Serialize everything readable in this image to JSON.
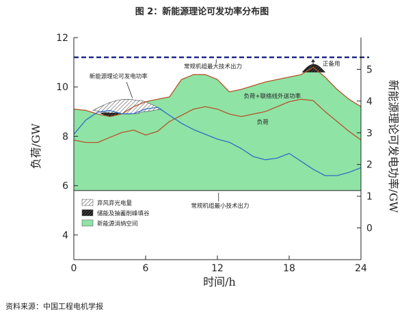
{
  "figure": {
    "title": "图 2：新能源理论可发功率分布图",
    "source": "资料来源：中国工程电机学报"
  },
  "chart_data": {
    "type": "area",
    "xlabel": "时间/h",
    "ylabel_left": "负荷/GW",
    "ylabel_right": "新能源理论可发电功率/GW",
    "xlim": [
      0,
      24
    ],
    "ylim_left": [
      3,
      12
    ],
    "ylim_right": [
      -1,
      6
    ],
    "x_ticks": [
      0,
      6,
      12,
      18,
      24
    ],
    "y_ticks_left": [
      4,
      6,
      8,
      10,
      12
    ],
    "y_ticks_right": [
      0,
      1,
      2,
      3,
      4,
      5
    ],
    "thermal_max": 11.2,
    "thermal_min": 5.8,
    "x": [
      0,
      1,
      2,
      3,
      4,
      5,
      6,
      7,
      8,
      9,
      10,
      11,
      12,
      13,
      14,
      15,
      16,
      17,
      18,
      19,
      20,
      21,
      22,
      23,
      24
    ],
    "series": [
      {
        "name": "负荷",
        "axis": "left",
        "color": "#b5522a",
        "values": [
          7.85,
          7.75,
          7.75,
          7.95,
          8.15,
          8.25,
          8.05,
          8.2,
          8.6,
          8.85,
          9.1,
          9.2,
          9.1,
          8.9,
          8.8,
          8.9,
          9.0,
          9.2,
          9.4,
          9.5,
          9.45,
          9.0,
          8.6,
          8.2,
          7.85
        ]
      },
      {
        "name": "负荷+联络线外送功率",
        "axis": "left",
        "color": "#b5522a",
        "values": [
          9.1,
          9.05,
          8.9,
          8.8,
          8.9,
          9.2,
          9.4,
          9.5,
          9.6,
          10.3,
          10.5,
          10.5,
          10.3,
          9.8,
          9.9,
          10.05,
          10.2,
          10.3,
          10.4,
          10.5,
          10.8,
          10.4,
          9.9,
          9.5,
          9.2
        ]
      },
      {
        "name": "新能源理论可发电功率",
        "axis": "right",
        "color": "#2f6ec2",
        "values": [
          2.95,
          3.4,
          3.65,
          3.7,
          3.6,
          3.6,
          3.75,
          3.8,
          3.55,
          3.3,
          3.1,
          2.95,
          2.8,
          2.7,
          2.5,
          2.25,
          2.15,
          2.2,
          2.35,
          2.1,
          1.85,
          1.65,
          1.65,
          1.75,
          1.9
        ]
      }
    ],
    "annotations": {
      "max_output": "常规机组最大技术出力",
      "min_output": "常规机组最小技术出力",
      "reserve": "正备用",
      "renewable": "新能源理论可发电功率",
      "load_tie": "负荷+联络线外送功率",
      "load": "负荷"
    },
    "legend": {
      "position": "bottom-left",
      "items": [
        {
          "label": "弃风弃光电量",
          "pattern": "light-hatch"
        },
        {
          "label": "储能及抽蓄削峰填谷",
          "pattern": "dark-hatch"
        },
        {
          "label": "新能源消纳空间",
          "color": "#8fe3a5"
        }
      ]
    }
  }
}
